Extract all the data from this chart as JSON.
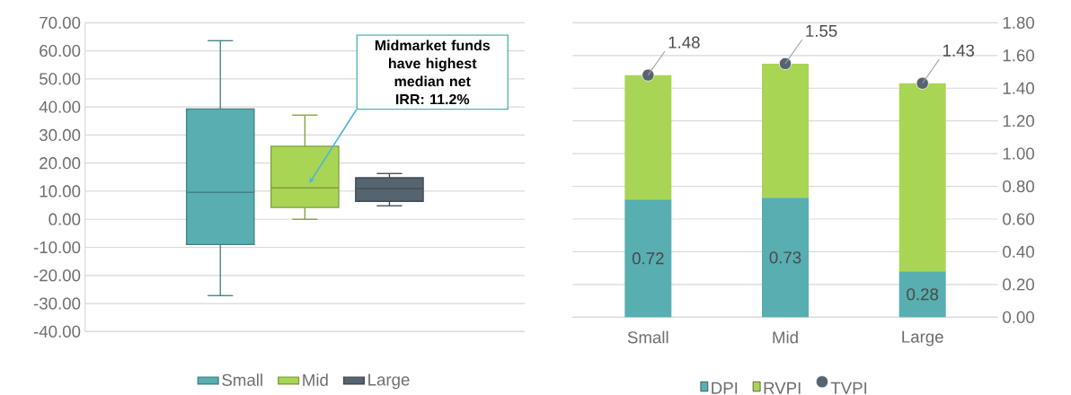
{
  "chart_data": [
    {
      "type": "box",
      "categories": [
        null
      ],
      "series": [
        {
          "name": "Small",
          "color": "#58aeb0",
          "boxes": [
            {
              "low": -27.2,
              "q1": -9.0,
              "median": 9.6,
              "q3": 39.3,
              "high": 63.6
            }
          ]
        },
        {
          "name": "Mid",
          "color": "#a9d554",
          "boxes": [
            {
              "low": 0.0,
              "q1": 4.2,
              "median": 11.2,
              "q3": 26.0,
              "high": 37.1
            }
          ]
        },
        {
          "name": "Large",
          "color": "#56646f",
          "boxes": [
            {
              "low": 4.8,
              "q1": 6.4,
              "median": 10.9,
              "q3": 14.8,
              "high": 16.3
            }
          ]
        }
      ],
      "ylim": [
        -40,
        70
      ],
      "yticks": [
        {
          "value": -40,
          "label": "-40.00"
        },
        {
          "value": -30,
          "label": "-30.00"
        },
        {
          "value": -20,
          "label": "-20.00"
        },
        {
          "value": -10,
          "label": "-10.00"
        },
        {
          "value": 0,
          "label": "0.00"
        },
        {
          "value": 10,
          "label": "10.00"
        },
        {
          "value": 20,
          "label": "20.00"
        },
        {
          "value": 30,
          "label": "30.00"
        },
        {
          "value": 40,
          "label": "40.00"
        },
        {
          "value": 50,
          "label": "50.00"
        },
        {
          "value": 60,
          "label": "60.00"
        },
        {
          "value": 70,
          "label": "70.00"
        }
      ],
      "grid": "y",
      "legend": "bottom",
      "tick_labels": "y",
      "annotations": [
        "Midmarket funds have highest median net IRR: 11.2%"
      ]
    },
    {
      "type": "bar",
      "stacked": true,
      "categories": [
        "Small",
        "Mid",
        "Large"
      ],
      "series": [
        {
          "name": "DPI",
          "type": "bar",
          "color": "#58aeb0",
          "values": [
            0.72,
            0.73,
            0.28
          ],
          "value_labels": [
            "0.72",
            "0.73",
            "0.28"
          ]
        },
        {
          "name": "RVPI",
          "type": "bar",
          "color": "#a9d554",
          "values": [
            0.76,
            0.82,
            1.15
          ]
        },
        {
          "name": "TVPI",
          "type": "scatter",
          "color": "#56646f",
          "values": [
            1.48,
            1.55,
            1.43
          ],
          "value_labels": [
            "1.48",
            "1.55",
            "1.43"
          ]
        }
      ],
      "ylim": [
        0,
        1.8
      ],
      "yticks": [
        {
          "value": 0,
          "label": "0.00"
        },
        {
          "value": 0.2,
          "label": "0.20"
        },
        {
          "value": 0.4,
          "label": "0.40"
        },
        {
          "value": 0.6,
          "label": "0.60"
        },
        {
          "value": 0.8,
          "label": "0.80"
        },
        {
          "value": 1.0,
          "label": "1.00"
        },
        {
          "value": 1.2,
          "label": "1.20"
        },
        {
          "value": 1.4,
          "label": "1.40"
        },
        {
          "value": 1.6,
          "label": "1.60"
        },
        {
          "value": 1.8,
          "label": "1.80"
        }
      ],
      "grid": "y",
      "legend": "bottom"
    }
  ]
}
